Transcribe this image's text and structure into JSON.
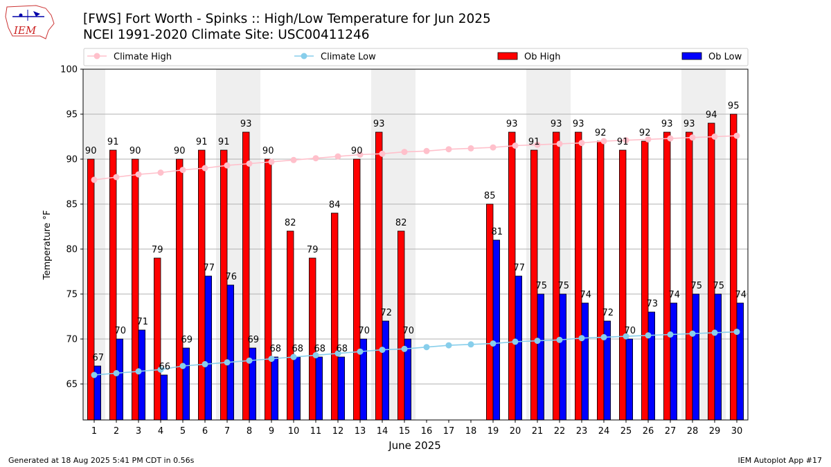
{
  "header": {
    "title_line1": "[FWS] Fort Worth - Spinks :: High/Low Temperature for Jun 2025",
    "title_line2": "NCEI 1991-2020 Climate Site: USC00411246",
    "logo_text": "IEM"
  },
  "footer": {
    "left": "Generated at 18 Aug 2025 5:41 PM CDT in 0.56s",
    "right": "IEM Autoplot App #17"
  },
  "colors": {
    "ob_high": "#ff0000",
    "ob_low": "#0000ff",
    "climate_high": "#ffc0cb",
    "climate_low": "#87ceeb",
    "weekend_shade": "#efefef",
    "grid": "#b0b0b0"
  },
  "chart_data": {
    "type": "bar",
    "xlabel": "June 2025",
    "ylabel": "Temperature °F",
    "ylim": [
      61,
      100
    ],
    "yticks": [
      65,
      70,
      75,
      80,
      85,
      90,
      95,
      100
    ],
    "grid": "horizontal",
    "legend_placement": "top",
    "categories": [
      "1",
      "2",
      "3",
      "4",
      "5",
      "6",
      "7",
      "8",
      "9",
      "10",
      "11",
      "12",
      "13",
      "14",
      "15",
      "16",
      "17",
      "18",
      "19",
      "20",
      "21",
      "22",
      "23",
      "24",
      "25",
      "26",
      "27",
      "28",
      "29",
      "30"
    ],
    "shaded_days": [
      1,
      7,
      8,
      14,
      15,
      21,
      22,
      28,
      29
    ],
    "series": [
      {
        "name": "Climate High",
        "kind": "line",
        "values": [
          87.7,
          88.0,
          88.3,
          88.5,
          88.8,
          89.0,
          89.3,
          89.5,
          89.7,
          89.9,
          90.1,
          90.3,
          90.5,
          90.6,
          90.8,
          90.9,
          91.1,
          91.2,
          91.3,
          91.5,
          91.6,
          91.7,
          91.8,
          92.0,
          92.1,
          92.2,
          92.3,
          92.4,
          92.5,
          92.6
        ]
      },
      {
        "name": "Climate Low",
        "kind": "line",
        "values": [
          66.0,
          66.2,
          66.4,
          66.6,
          67.0,
          67.2,
          67.4,
          67.6,
          67.8,
          68.0,
          68.2,
          68.4,
          68.6,
          68.8,
          68.9,
          69.1,
          69.3,
          69.4,
          69.5,
          69.7,
          69.8,
          69.9,
          70.1,
          70.2,
          70.3,
          70.4,
          70.5,
          70.6,
          70.7,
          70.8
        ]
      },
      {
        "name": "Ob High",
        "kind": "bar",
        "values": [
          90,
          91,
          90,
          79,
          90,
          91,
          91,
          93,
          90,
          82,
          79,
          84,
          90,
          93,
          82,
          null,
          null,
          null,
          85,
          93,
          91,
          93,
          93,
          92,
          91,
          92,
          93,
          93,
          94,
          95
        ]
      },
      {
        "name": "Ob Low",
        "kind": "bar",
        "values": [
          67,
          70,
          71,
          66,
          69,
          77,
          76,
          69,
          68,
          68,
          68,
          68,
          70,
          72,
          70,
          null,
          null,
          null,
          81,
          77,
          75,
          75,
          74,
          72,
          70,
          73,
          74,
          75,
          75,
          74
        ]
      }
    ]
  }
}
